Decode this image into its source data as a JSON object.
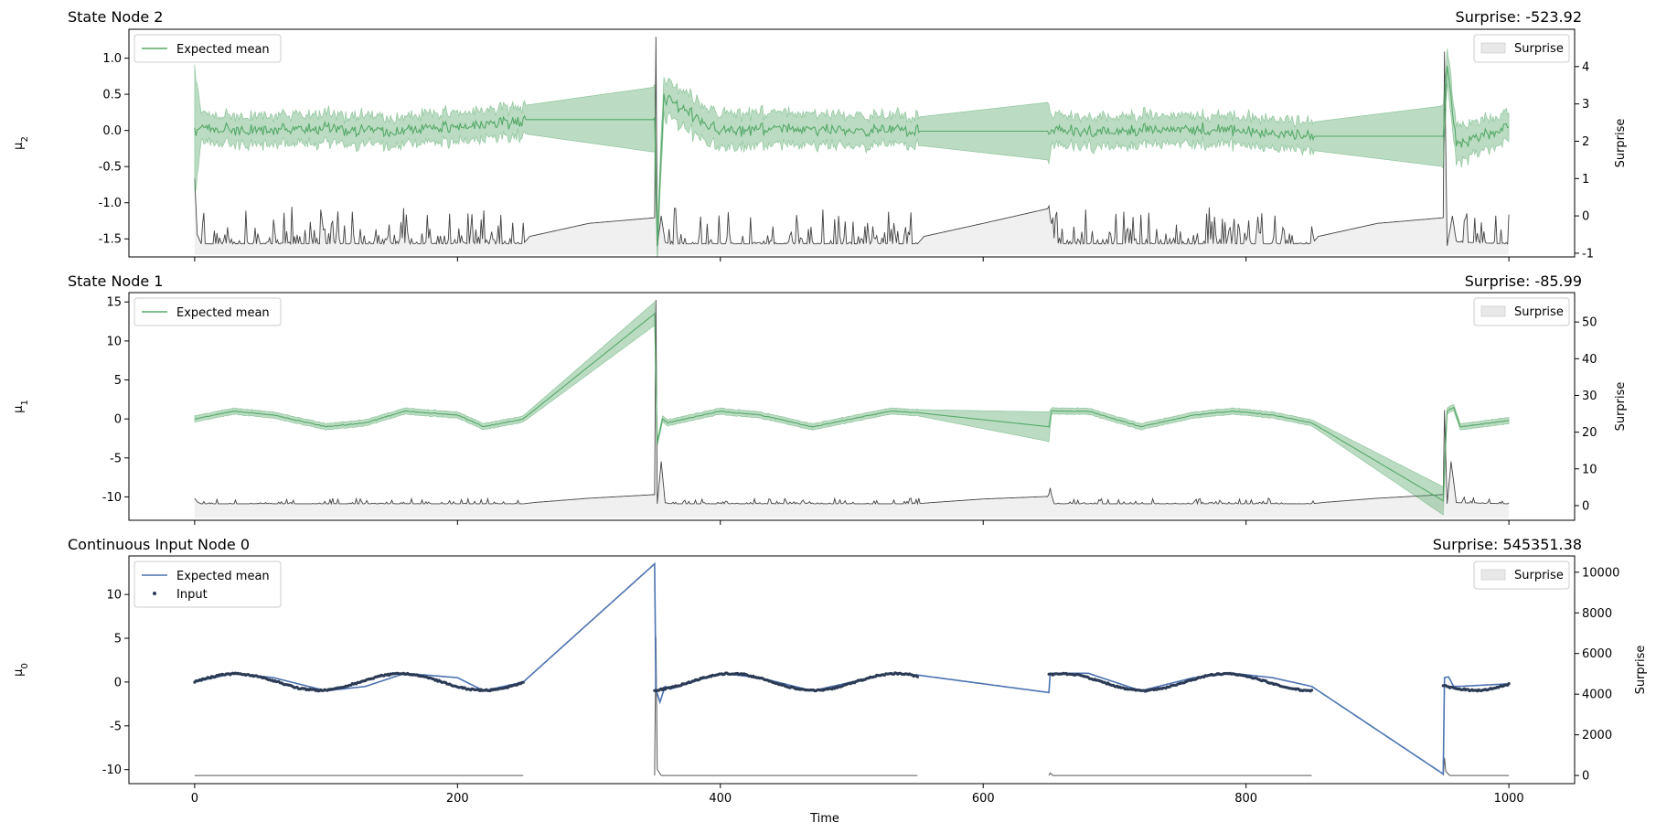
{
  "chart_data": [
    {
      "type": "line",
      "title": "State Node 2",
      "title_right": "Surprise: -523.92",
      "ylabel": "μ",
      "ylabel_sub": "2",
      "ylabel_right": "Surprise",
      "xlim": [
        -50,
        1050
      ],
      "ylim": [
        -1.75,
        1.4
      ],
      "ylim_right": [
        -1.1,
        5.0
      ],
      "yticks": [
        1.0,
        0.5,
        0.0,
        -0.5,
        -1.0,
        -1.5
      ],
      "yticks_right": [
        4,
        3,
        2,
        1,
        0,
        -1
      ],
      "legend_left": [
        "Expected mean"
      ],
      "legend_right": [
        "Surprise"
      ],
      "legend_placement": [
        "upper left",
        "upper right"
      ],
      "colors": {
        "mean": "#55a868",
        "band": "#55a868",
        "surprise": "#444444"
      },
      "series": [
        {
          "name": "Expected mean",
          "x": [
            0,
            10,
            50,
            100,
            150,
            200,
            250,
            252,
            350,
            352,
            357,
            400,
            450,
            500,
            550,
            552,
            650,
            652,
            700,
            750,
            800,
            850,
            852,
            950,
            953,
            960,
            1000
          ],
          "y": [
            0.0,
            0.02,
            0.0,
            0.03,
            -0.02,
            0.05,
            0.12,
            0.15,
            0.15,
            -1.5,
            0.45,
            0.0,
            0.02,
            0.0,
            -0.01,
            -0.01,
            -0.01,
            0.0,
            0.0,
            0.02,
            0.0,
            -0.08,
            -0.08,
            -0.08,
            0.9,
            -0.2,
            0.05
          ]
        },
        {
          "name": "Expected band half-width",
          "x": [
            0,
            5,
            250,
            252,
            350,
            352,
            550,
            552,
            650,
            652,
            850,
            852,
            950,
            953,
            1000
          ],
          "y": [
            0.9,
            0.2,
            0.2,
            0.2,
            0.45,
            0.25,
            0.2,
            0.2,
            0.4,
            0.2,
            0.2,
            0.2,
            0.42,
            0.25,
            0.2
          ]
        },
        {
          "name": "Surprise",
          "x": [
            0,
            2,
            5,
            250,
            255,
            300,
            350,
            351,
            352,
            355,
            358,
            360,
            550,
            555,
            600,
            650,
            652,
            655,
            850,
            855,
            900,
            950,
            951,
            953,
            957,
            960,
            1000
          ],
          "y": [
            1.0,
            -0.5,
            -0.75,
            -0.75,
            -0.55,
            -0.2,
            -0.05,
            4.8,
            -0.8,
            0.0,
            -0.7,
            -0.75,
            -0.75,
            -0.55,
            -0.2,
            0.2,
            -0.3,
            -0.75,
            -0.75,
            -0.55,
            -0.2,
            -0.05,
            4.4,
            -0.8,
            0.0,
            -0.7,
            -0.75
          ]
        }
      ]
    },
    {
      "type": "line",
      "title": "State Node 1",
      "title_right": "Surprise: -85.99",
      "ylabel": "μ",
      "ylabel_sub": "1",
      "ylabel_right": "Surprise",
      "xlim": [
        -50,
        1050
      ],
      "ylim": [
        -13,
        16.2
      ],
      "ylim_right": [
        -4,
        58
      ],
      "yticks": [
        15,
        10,
        5,
        0,
        -5,
        -10
      ],
      "yticks_right": [
        50,
        40,
        30,
        20,
        10,
        0
      ],
      "legend_left": [
        "Expected mean"
      ],
      "legend_right": [
        "Surprise"
      ],
      "legend_placement": [
        "upper left",
        "upper right"
      ],
      "colors": {
        "mean": "#55a868",
        "band": "#55a868",
        "surprise": "#444444"
      },
      "series": [
        {
          "name": "Expected mean",
          "x": [
            0,
            30,
            60,
            100,
            130,
            160,
            200,
            220,
            250,
            350,
            352,
            356,
            360,
            400,
            430,
            470,
            500,
            530,
            550,
            650,
            652,
            680,
            720,
            760,
            790,
            820,
            850,
            950,
            953,
            958,
            963,
            1000
          ],
          "y": [
            0.0,
            1.0,
            0.5,
            -1.0,
            -0.5,
            1.0,
            0.5,
            -1.0,
            0.0,
            13.5,
            -3.0,
            0.0,
            -0.5,
            1.0,
            0.5,
            -1.0,
            0.0,
            1.0,
            0.8,
            -1.0,
            1.0,
            1.0,
            -1.0,
            0.5,
            1.0,
            0.5,
            -0.5,
            -10.5,
            1.0,
            1.5,
            -1.0,
            -0.2
          ]
        },
        {
          "name": "Expected band half-width",
          "x": [
            0,
            250,
            350,
            352,
            550,
            650,
            652,
            850,
            950,
            953,
            1000
          ],
          "y": [
            0.4,
            0.4,
            1.5,
            0.4,
            0.4,
            1.9,
            0.4,
            0.4,
            1.8,
            0.4,
            0.4
          ]
        },
        {
          "name": "Surprise",
          "x": [
            0,
            2,
            5,
            250,
            260,
            300,
            350,
            351,
            352,
            355,
            358,
            362,
            550,
            560,
            600,
            650,
            651,
            654,
            850,
            860,
            900,
            950,
            951,
            953,
            956,
            960,
            1000
          ],
          "y": [
            2.0,
            1.0,
            0.5,
            0.5,
            0.9,
            2.0,
            3.0,
            56,
            0.5,
            12,
            0.8,
            0.5,
            0.5,
            0.8,
            1.8,
            2.5,
            4.0,
            0.5,
            0.5,
            0.9,
            2.0,
            3.0,
            26,
            0.5,
            12,
            0.8,
            0.5
          ]
        }
      ]
    },
    {
      "type": "line",
      "title": "Continuous Input Node 0",
      "title_right": "Surprise: 545351.38",
      "ylabel": "μ",
      "ylabel_sub": "0",
      "ylabel_right": "Surprise",
      "xlabel": "Time",
      "xticks": [
        0,
        200,
        400,
        600,
        800,
        1000
      ],
      "xlim": [
        -50,
        1050
      ],
      "ylim": [
        -11.6,
        14.4
      ],
      "ylim_right": [
        -400,
        10800
      ],
      "yticks": [
        10,
        5,
        0,
        -5,
        -10
      ],
      "yticks_right": [
        10000,
        8000,
        6000,
        4000,
        2000,
        0
      ],
      "legend_left": [
        "Expected mean",
        "Input"
      ],
      "legend_right": [
        "Surprise"
      ],
      "legend_placement": [
        "upper left",
        "upper right"
      ],
      "colors": {
        "mean": "#4c72b0",
        "input": "#2b3a55",
        "surprise": "#444444"
      },
      "series": [
        {
          "name": "Expected mean",
          "x": [
            0,
            30,
            60,
            100,
            130,
            160,
            200,
            220,
            250,
            350,
            351,
            354,
            358,
            362,
            400,
            430,
            470,
            500,
            530,
            550,
            650,
            651,
            680,
            720,
            760,
            790,
            820,
            850,
            950,
            951,
            954,
            958,
            962,
            1000
          ],
          "y": [
            0.0,
            1.0,
            0.5,
            -1.0,
            -0.5,
            1.0,
            0.5,
            -1.0,
            0.0,
            13.5,
            -0.8,
            -2.3,
            -0.5,
            -0.8,
            1.0,
            0.5,
            -1.0,
            0.0,
            1.0,
            0.8,
            -1.2,
            1.0,
            1.0,
            -1.0,
            0.5,
            1.0,
            0.5,
            -0.5,
            -10.5,
            0.5,
            0.6,
            -0.5,
            -0.5,
            -0.2
          ]
        },
        {
          "name": "Input",
          "segments": [
            [
              0,
              250
            ],
            [
              350,
              550
            ],
            [
              650,
              850
            ],
            [
              950,
              1000
            ]
          ]
        },
        {
          "name": "Surprise",
          "x": [
            0,
            250,
            350,
            350.5,
            352,
            355,
            550,
            650,
            650.5,
            653,
            655,
            850,
            950,
            950.5,
            952,
            955,
            1000
          ],
          "y": [
            0,
            0,
            0,
            10100,
            300,
            0,
            0,
            0,
            150,
            0,
            0,
            0,
            0,
            1200,
            200,
            0,
            0
          ]
        }
      ]
    }
  ]
}
